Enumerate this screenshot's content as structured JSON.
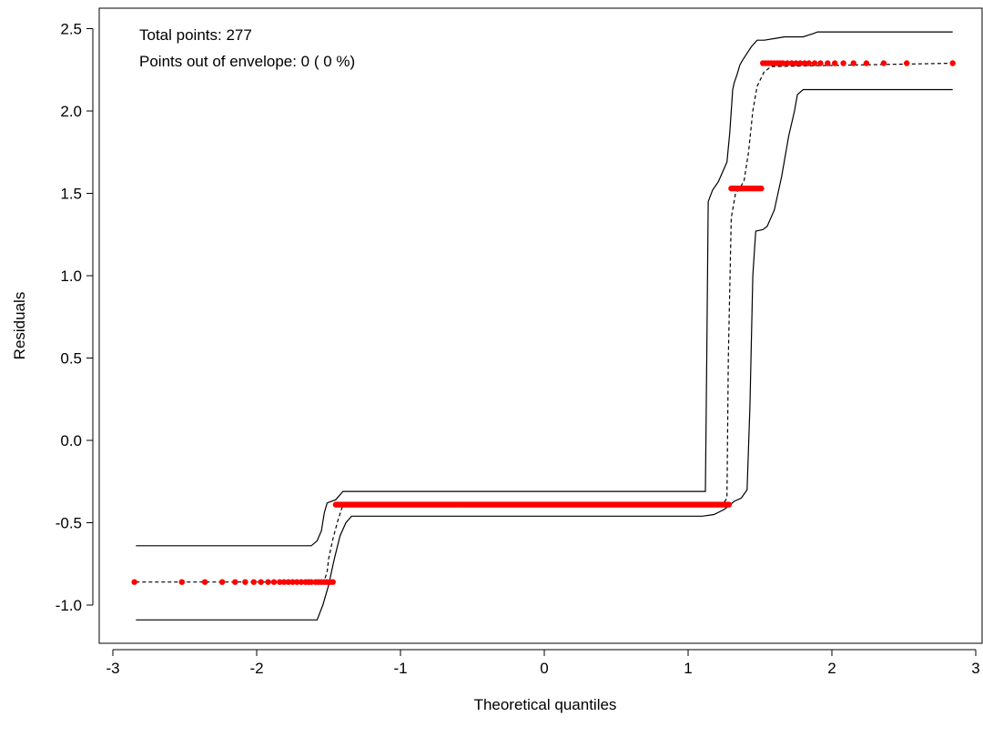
{
  "chart_data": {
    "type": "scatter",
    "title": "",
    "xlabel": "Theoretical quantiles",
    "ylabel": "Residuals",
    "xlim": [
      -3,
      3
    ],
    "ylim": [
      -1.2,
      2.55
    ],
    "x_ticks": [
      -3,
      -2,
      -1,
      0,
      1,
      2,
      3
    ],
    "x_tick_labels": [
      "-3",
      "-2",
      "-1",
      "0",
      "1",
      "2",
      "3"
    ],
    "y_ticks": [
      -1.0,
      -0.5,
      0.0,
      0.5,
      1.0,
      1.5,
      2.0,
      2.5
    ],
    "y_tick_labels": [
      "-1.0",
      "-0.5",
      "0.0",
      "0.5",
      "1.0",
      "1.5",
      "2.0",
      "2.5"
    ],
    "grid": false,
    "annotations": [
      "Total points: 277",
      "Points out of envelope: 0 ( 0 %)"
    ],
    "colors": {
      "points": "#ff0000",
      "lines": "#000000"
    },
    "series": [
      {
        "role": "residual-points",
        "groups": [
          {
            "y": -0.86,
            "x": [
              -2.85,
              -2.52,
              -2.36,
              -2.24,
              -2.15,
              -2.08,
              -2.02,
              -1.97,
              -1.92,
              -1.88,
              -1.84,
              -1.81,
              -1.78,
              -1.75,
              -1.72,
              -1.69,
              -1.66,
              -1.64,
              -1.62,
              -1.59,
              -1.57,
              -1.55,
              -1.53,
              -1.51,
              -1.49,
              -1.47
            ]
          },
          {
            "y": -0.39,
            "x_range": [
              -1.45,
              1.29
            ]
          },
          {
            "y": 1.53,
            "x_range": [
              1.3,
              1.51
            ]
          },
          {
            "y": 2.29,
            "x": [
              1.52,
              1.54,
              1.56,
              1.58,
              1.6,
              1.62,
              1.64,
              1.66,
              1.69,
              1.72,
              1.75,
              1.78,
              1.81,
              1.84,
              1.88,
              1.92,
              1.97,
              2.02,
              2.08,
              2.15,
              2.24,
              2.36,
              2.52,
              2.84
            ]
          }
        ]
      },
      {
        "role": "upper-envelope",
        "x": [
          -2.84,
          -1.62,
          -1.58,
          -1.55,
          -1.53,
          -1.51,
          -1.45,
          -1.4,
          1.12,
          1.13,
          1.14,
          1.17,
          1.21,
          1.25,
          1.27,
          1.29,
          1.31,
          1.32,
          1.34,
          1.36,
          1.38,
          1.41,
          1.44,
          1.48,
          1.53,
          1.6,
          1.67,
          1.8,
          1.87,
          1.9,
          2.84
        ],
        "y": [
          -0.64,
          -0.64,
          -0.61,
          -0.55,
          -0.44,
          -0.38,
          -0.36,
          -0.31,
          -0.31,
          0.5,
          1.45,
          1.52,
          1.57,
          1.65,
          1.69,
          1.87,
          2.13,
          2.17,
          2.22,
          2.28,
          2.31,
          2.35,
          2.39,
          2.43,
          2.43,
          2.44,
          2.45,
          2.45,
          2.47,
          2.48,
          2.48
        ]
      },
      {
        "role": "reference-line",
        "x": [
          -2.84,
          -1.56,
          -1.53,
          -1.51,
          -1.5,
          -1.47,
          -1.44,
          -1.4,
          1.12,
          1.2,
          1.24,
          1.27,
          1.28,
          1.3,
          1.33,
          1.36,
          1.39,
          1.42,
          1.45,
          1.48,
          1.53,
          1.58,
          2.84
        ],
        "y": [
          -0.86,
          -0.86,
          -0.85,
          -0.8,
          -0.72,
          -0.6,
          -0.5,
          -0.39,
          -0.39,
          -0.39,
          -0.39,
          -0.35,
          0.5,
          1.35,
          1.5,
          1.53,
          1.58,
          1.75,
          2.0,
          2.15,
          2.24,
          2.27,
          2.29
        ]
      },
      {
        "role": "lower-envelope",
        "x": [
          -2.84,
          -1.58,
          -1.54,
          -1.5,
          -1.46,
          -1.42,
          -1.38,
          -1.34,
          1.1,
          1.18,
          1.25,
          1.28,
          1.32,
          1.37,
          1.41,
          1.43,
          1.45,
          1.47,
          1.52,
          1.55,
          1.6,
          1.65,
          1.7,
          1.74,
          1.76,
          1.8,
          2.84
        ],
        "y": [
          -1.09,
          -1.09,
          -1.0,
          -0.88,
          -0.72,
          -0.58,
          -0.5,
          -0.46,
          -0.46,
          -0.45,
          -0.42,
          -0.4,
          -0.37,
          -0.35,
          -0.3,
          0.2,
          1.0,
          1.27,
          1.28,
          1.3,
          1.4,
          1.6,
          1.85,
          2.0,
          2.1,
          2.13,
          2.13
        ]
      }
    ]
  }
}
